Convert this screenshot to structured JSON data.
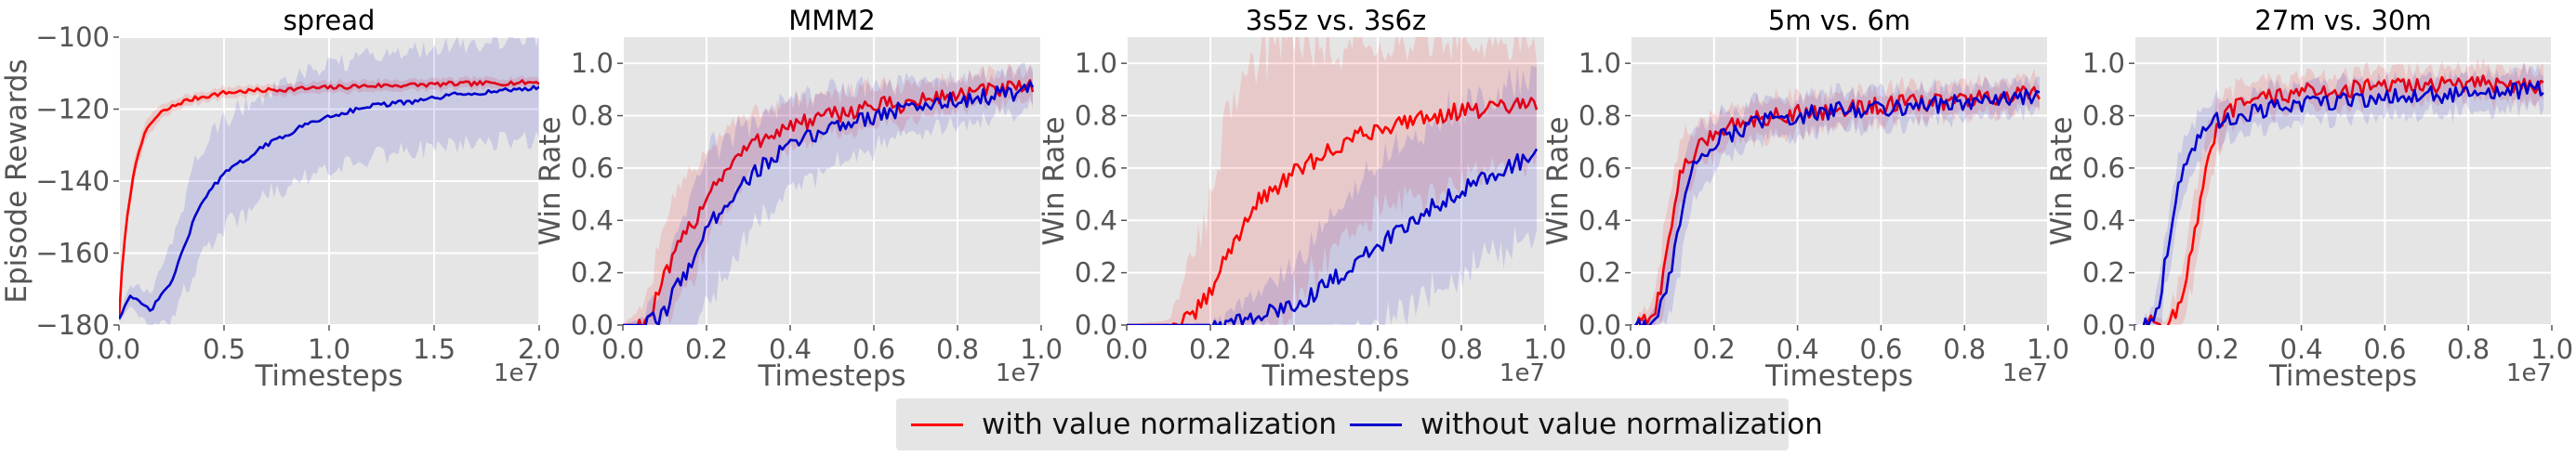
{
  "legend": {
    "with_label": "with value normalization",
    "without_label": "without value normalization"
  },
  "colors": {
    "with": "#ff0000",
    "without": "#0000cc",
    "panel_bg": "#e5e5e5"
  },
  "chart_data": [
    {
      "type": "line",
      "title": "spread",
      "xlabel": "Timesteps",
      "ylabel": "Episode Rewards",
      "x_offset_label": "1e7",
      "xlim": [
        0,
        2.0
      ],
      "ylim": [
        -180,
        -100
      ],
      "xticks": [
        0.0,
        0.5,
        1.0,
        1.5,
        2.0
      ],
      "xtick_labels": [
        "0.0",
        "0.5",
        "1.0",
        "1.5",
        "2.0"
      ],
      "yticks": [
        -180,
        -160,
        -140,
        -120,
        -100
      ],
      "ytick_labels": [
        "−180",
        "−160",
        "−140",
        "−120",
        "−100"
      ],
      "series": [
        {
          "name": "with value normalization",
          "x": [
            0,
            0.02,
            0.05,
            0.08,
            0.1,
            0.15,
            0.2,
            0.3,
            0.4,
            0.5,
            0.6,
            0.8,
            1.0,
            1.2,
            1.4,
            1.6,
            1.8,
            2.0
          ],
          "y": [
            -178,
            -160,
            -145,
            -135,
            -130,
            -124,
            -121,
            -118,
            -116.5,
            -115.5,
            -115,
            -114.5,
            -114,
            -113.5,
            -113.3,
            -113,
            -112.8,
            -112.5
          ],
          "band": [
            0.5,
            2,
            3,
            3,
            3,
            2.5,
            2,
            1.5,
            1.5,
            1.5,
            1.5,
            1.5,
            1.5,
            1.5,
            1.5,
            1.5,
            1.5,
            1.5
          ]
        },
        {
          "name": "without value normalization",
          "x": [
            0,
            0.05,
            0.1,
            0.15,
            0.2,
            0.25,
            0.3,
            0.35,
            0.4,
            0.5,
            0.6,
            0.7,
            0.8,
            0.9,
            1.0,
            1.2,
            1.4,
            1.6,
            1.8,
            2.0
          ],
          "y": [
            -178,
            -172,
            -174,
            -176,
            -172,
            -168,
            -160,
            -152,
            -145,
            -138,
            -134,
            -130,
            -127,
            -124,
            -122,
            -119,
            -118,
            -116,
            -115,
            -114
          ],
          "band": [
            1,
            3,
            4,
            5,
            8,
            10,
            12,
            14,
            15,
            15,
            15,
            14,
            14,
            14,
            14,
            14,
            14,
            14,
            14,
            14
          ]
        }
      ]
    },
    {
      "type": "line",
      "title": "MMM2",
      "xlabel": "Timesteps",
      "ylabel": "Win Rate",
      "x_offset_label": "1e7",
      "xlim": [
        0,
        1.0
      ],
      "ylim": [
        0,
        1.1
      ],
      "xticks": [
        0.0,
        0.2,
        0.4,
        0.6,
        0.8,
        1.0
      ],
      "xtick_labels": [
        "0.0",
        "0.2",
        "0.4",
        "0.6",
        "0.8",
        "1.0"
      ],
      "yticks": [
        0.0,
        0.2,
        0.4,
        0.6,
        0.8,
        1.0
      ],
      "ytick_labels": [
        "0.0",
        "0.2",
        "0.4",
        "0.6",
        "0.8",
        "1.0"
      ],
      "series": [
        {
          "name": "with value normalization",
          "x": [
            0,
            0.03,
            0.06,
            0.08,
            0.1,
            0.12,
            0.15,
            0.18,
            0.2,
            0.25,
            0.3,
            0.35,
            0.4,
            0.45,
            0.5,
            0.55,
            0.6,
            0.65,
            0.7,
            0.75,
            0.8,
            0.85,
            0.9,
            0.95,
            0.98
          ],
          "y": [
            0,
            0,
            0.02,
            0.1,
            0.18,
            0.25,
            0.35,
            0.42,
            0.5,
            0.6,
            0.68,
            0.73,
            0.76,
            0.78,
            0.8,
            0.82,
            0.84,
            0.84,
            0.85,
            0.87,
            0.88,
            0.89,
            0.9,
            0.9,
            0.91
          ],
          "band": [
            0,
            0.05,
            0.1,
            0.15,
            0.2,
            0.22,
            0.22,
            0.2,
            0.18,
            0.15,
            0.12,
            0.1,
            0.1,
            0.08,
            0.08,
            0.08,
            0.07,
            0.07,
            0.07,
            0.06,
            0.06,
            0.06,
            0.06,
            0.06,
            0.06
          ]
        },
        {
          "name": "without value normalization",
          "x": [
            0,
            0.05,
            0.08,
            0.1,
            0.12,
            0.15,
            0.18,
            0.2,
            0.25,
            0.3,
            0.35,
            0.4,
            0.45,
            0.5,
            0.55,
            0.6,
            0.65,
            0.7,
            0.75,
            0.8,
            0.85,
            0.9,
            0.95,
            0.98
          ],
          "y": [
            0,
            0,
            0.02,
            0.05,
            0.12,
            0.2,
            0.3,
            0.36,
            0.48,
            0.56,
            0.63,
            0.68,
            0.72,
            0.76,
            0.78,
            0.8,
            0.82,
            0.83,
            0.85,
            0.86,
            0.87,
            0.88,
            0.89,
            0.9
          ],
          "band": [
            0,
            0.03,
            0.08,
            0.12,
            0.2,
            0.25,
            0.28,
            0.28,
            0.25,
            0.22,
            0.2,
            0.18,
            0.16,
            0.14,
            0.13,
            0.12,
            0.1,
            0.1,
            0.09,
            0.08,
            0.08,
            0.08,
            0.08,
            0.08
          ]
        }
      ]
    },
    {
      "type": "line",
      "title": "3s5z vs. 3s6z",
      "xlabel": "Timesteps",
      "ylabel": "Win Rate",
      "x_offset_label": "1e7",
      "xlim": [
        0,
        1.0
      ],
      "ylim": [
        0,
        1.1
      ],
      "xticks": [
        0.0,
        0.2,
        0.4,
        0.6,
        0.8,
        1.0
      ],
      "xtick_labels": [
        "0.0",
        "0.2",
        "0.4",
        "0.6",
        "0.8",
        "1.0"
      ],
      "yticks": [
        0.0,
        0.2,
        0.4,
        0.6,
        0.8,
        1.0
      ],
      "ytick_labels": [
        "0.0",
        "0.2",
        "0.4",
        "0.6",
        "0.8",
        "1.0"
      ],
      "series": [
        {
          "name": "with value normalization",
          "x": [
            0,
            0.1,
            0.15,
            0.2,
            0.22,
            0.25,
            0.28,
            0.3,
            0.35,
            0.4,
            0.45,
            0.5,
            0.55,
            0.6,
            0.65,
            0.7,
            0.75,
            0.8,
            0.85,
            0.9,
            0.95,
            0.98
          ],
          "y": [
            0,
            0,
            0.02,
            0.12,
            0.2,
            0.3,
            0.38,
            0.45,
            0.52,
            0.58,
            0.63,
            0.68,
            0.72,
            0.75,
            0.77,
            0.8,
            0.8,
            0.82,
            0.82,
            0.83,
            0.84,
            0.85
          ],
          "band": [
            0,
            0.02,
            0.2,
            0.35,
            0.45,
            0.55,
            0.6,
            0.6,
            0.55,
            0.5,
            0.45,
            0.4,
            0.35,
            0.32,
            0.3,
            0.3,
            0.28,
            0.26,
            0.25,
            0.24,
            0.23,
            0.22
          ]
        },
        {
          "name": "without value normalization",
          "x": [
            0,
            0.2,
            0.25,
            0.3,
            0.35,
            0.4,
            0.45,
            0.5,
            0.55,
            0.6,
            0.65,
            0.7,
            0.75,
            0.8,
            0.85,
            0.9,
            0.95,
            0.98
          ],
          "y": [
            0,
            0,
            0.01,
            0.02,
            0.05,
            0.08,
            0.12,
            0.18,
            0.24,
            0.3,
            0.36,
            0.42,
            0.47,
            0.52,
            0.56,
            0.6,
            0.63,
            0.66
          ],
          "band": [
            0,
            0.01,
            0.04,
            0.08,
            0.12,
            0.16,
            0.2,
            0.24,
            0.28,
            0.3,
            0.32,
            0.32,
            0.32,
            0.32,
            0.3,
            0.3,
            0.3,
            0.3
          ]
        }
      ]
    },
    {
      "type": "line",
      "title": "5m vs. 6m",
      "xlabel": "Timesteps",
      "ylabel": "Win Rate",
      "x_offset_label": "1e7",
      "xlim": [
        0,
        1.0
      ],
      "ylim": [
        0,
        1.1
      ],
      "xticks": [
        0.0,
        0.2,
        0.4,
        0.6,
        0.8,
        1.0
      ],
      "xtick_labels": [
        "0.0",
        "0.2",
        "0.4",
        "0.6",
        "0.8",
        "1.0"
      ],
      "yticks": [
        0.0,
        0.2,
        0.4,
        0.6,
        0.8,
        1.0
      ],
      "ytick_labels": [
        "0.0",
        "0.2",
        "0.4",
        "0.6",
        "0.8",
        "1.0"
      ],
      "series": [
        {
          "name": "with value normalization",
          "x": [
            0,
            0.05,
            0.08,
            0.1,
            0.12,
            0.15,
            0.18,
            0.2,
            0.25,
            0.3,
            0.35,
            0.4,
            0.5,
            0.6,
            0.7,
            0.8,
            0.9,
            0.98
          ],
          "y": [
            0,
            0.01,
            0.2,
            0.42,
            0.58,
            0.65,
            0.7,
            0.74,
            0.77,
            0.79,
            0.8,
            0.81,
            0.82,
            0.84,
            0.85,
            0.86,
            0.87,
            0.89
          ],
          "band": [
            0,
            0.05,
            0.15,
            0.15,
            0.12,
            0.1,
            0.08,
            0.08,
            0.07,
            0.07,
            0.07,
            0.07,
            0.06,
            0.06,
            0.06,
            0.06,
            0.06,
            0.06
          ]
        },
        {
          "name": "without value normalization",
          "x": [
            0,
            0.06,
            0.09,
            0.11,
            0.13,
            0.15,
            0.18,
            0.2,
            0.25,
            0.3,
            0.35,
            0.4,
            0.5,
            0.6,
            0.7,
            0.8,
            0.9,
            0.98
          ],
          "y": [
            0,
            0.01,
            0.15,
            0.35,
            0.5,
            0.6,
            0.66,
            0.7,
            0.74,
            0.77,
            0.79,
            0.8,
            0.82,
            0.83,
            0.84,
            0.85,
            0.86,
            0.87
          ],
          "band": [
            0,
            0.05,
            0.15,
            0.18,
            0.18,
            0.15,
            0.12,
            0.1,
            0.08,
            0.08,
            0.07,
            0.07,
            0.07,
            0.07,
            0.06,
            0.06,
            0.06,
            0.06
          ]
        }
      ]
    },
    {
      "type": "line",
      "title": "27m vs. 30m",
      "xlabel": "Timesteps",
      "ylabel": "Win Rate",
      "x_offset_label": "1e7",
      "xlim": [
        0,
        1.0
      ],
      "ylim": [
        0,
        1.1
      ],
      "xticks": [
        0.0,
        0.2,
        0.4,
        0.6,
        0.8,
        1.0
      ],
      "xtick_labels": [
        "0.0",
        "0.2",
        "0.4",
        "0.6",
        "0.8",
        "1.0"
      ],
      "yticks": [
        0.0,
        0.2,
        0.4,
        0.6,
        0.8,
        1.0
      ],
      "ytick_labels": [
        "0.0",
        "0.2",
        "0.4",
        "0.6",
        "0.8",
        "1.0"
      ],
      "series": [
        {
          "name": "with value normalization",
          "x": [
            0,
            0.08,
            0.1,
            0.12,
            0.14,
            0.16,
            0.18,
            0.2,
            0.22,
            0.25,
            0.3,
            0.35,
            0.4,
            0.5,
            0.6,
            0.7,
            0.8,
            0.9,
            0.98
          ],
          "y": [
            0,
            0.01,
            0.05,
            0.15,
            0.3,
            0.5,
            0.65,
            0.75,
            0.8,
            0.84,
            0.86,
            0.88,
            0.89,
            0.9,
            0.91,
            0.92,
            0.92,
            0.92,
            0.92
          ],
          "band": [
            0,
            0.03,
            0.08,
            0.12,
            0.15,
            0.15,
            0.12,
            0.1,
            0.08,
            0.07,
            0.07,
            0.06,
            0.06,
            0.06,
            0.06,
            0.06,
            0.06,
            0.06,
            0.06
          ]
        },
        {
          "name": "without value normalization",
          "x": [
            0,
            0.04,
            0.06,
            0.08,
            0.1,
            0.12,
            0.14,
            0.16,
            0.18,
            0.2,
            0.25,
            0.3,
            0.35,
            0.4,
            0.5,
            0.6,
            0.7,
            0.8,
            0.9,
            0.98
          ],
          "y": [
            0,
            0.01,
            0.1,
            0.3,
            0.5,
            0.62,
            0.68,
            0.72,
            0.76,
            0.78,
            0.8,
            0.82,
            0.83,
            0.84,
            0.86,
            0.87,
            0.88,
            0.88,
            0.89,
            0.9
          ],
          "band": [
            0,
            0.04,
            0.1,
            0.12,
            0.12,
            0.1,
            0.09,
            0.08,
            0.08,
            0.08,
            0.07,
            0.07,
            0.07,
            0.07,
            0.07,
            0.07,
            0.07,
            0.07,
            0.07,
            0.07
          ]
        }
      ]
    }
  ]
}
